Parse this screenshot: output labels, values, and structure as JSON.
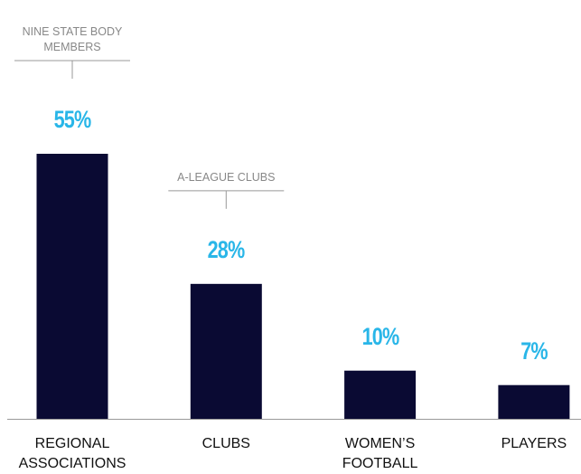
{
  "chart_data": {
    "type": "bar",
    "categories": [
      "REGIONAL ASSOCIATIONS",
      "CLUBS",
      "WOMEN’S FOOTBALL",
      "PLAYERS"
    ],
    "values": [
      55,
      28,
      10,
      7
    ],
    "value_labels": [
      "55%",
      "28%",
      "10%",
      "7%"
    ],
    "annotations": [
      "NINE STATE BODY MEMBERS",
      "A-LEAGUE CLUBS"
    ],
    "color": "#0a0a33"
  }
}
